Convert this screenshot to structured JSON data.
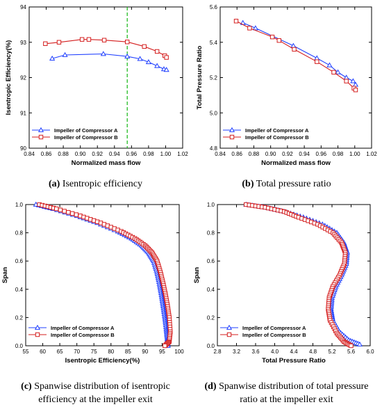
{
  "captions": [
    {
      "letter": "(a)",
      "text": "Isentropic efficiency"
    },
    {
      "letter": "(b)",
      "text": "Total pressure ratio"
    },
    {
      "letter": "(c)",
      "text": "Spanwise distribution of isentropic",
      "text2": "efficiency at the impeller exit"
    },
    {
      "letter": "(d)",
      "text": "Spanwise distribution of total pressure",
      "text2": "ratio at the impeller exit"
    }
  ],
  "colors": {
    "A": "#1f3fff",
    "B": "#d41c1c",
    "refline": "#11b611"
  },
  "chart_data": [
    {
      "type": "line",
      "xlabel": "Normalized mass flow",
      "ylabel": "Isentropic Efficiency(%)",
      "xlim": [
        0.84,
        1.02
      ],
      "ylim": [
        90,
        94
      ],
      "xticks": [
        "0.84",
        "0.86",
        "0.88",
        "0.90",
        "0.92",
        "0.94",
        "0.96",
        "0.98",
        "1.00",
        "1.02"
      ],
      "yticks": [
        "90",
        "91",
        "92",
        "93",
        "94"
      ],
      "legend_position": "bottom-left",
      "reference_line": {
        "x": 0.955,
        "style": "dashed"
      },
      "series": [
        {
          "name": "Impeller of Compressor A",
          "marker": "triangle",
          "x": [
            0.867,
            0.882,
            0.927,
            0.955,
            0.97,
            0.98,
            0.99,
            0.998,
            1.001
          ],
          "y": [
            92.54,
            92.64,
            92.67,
            92.6,
            92.53,
            92.44,
            92.33,
            92.24,
            92.22
          ]
        },
        {
          "name": "Impeller of Compressor B",
          "marker": "square",
          "x": [
            0.859,
            0.875,
            0.902,
            0.91,
            0.928,
            0.955,
            0.975,
            0.99,
            0.999,
            1.001
          ],
          "y": [
            92.96,
            93.0,
            93.08,
            93.08,
            93.06,
            93.01,
            92.88,
            92.74,
            92.62,
            92.57
          ]
        }
      ]
    },
    {
      "type": "line",
      "xlabel": "Normalized mass flow",
      "ylabel": "Total Pressure Ratio",
      "xlim": [
        0.84,
        1.02
      ],
      "ylim": [
        4.8,
        5.6
      ],
      "xticks": [
        "0.84",
        "0.86",
        "0.88",
        "0.90",
        "0.92",
        "0.94",
        "0.96",
        "0.98",
        "1.00",
        "1.02"
      ],
      "yticks": [
        "4.8",
        "5.0",
        "5.2",
        "5.4",
        "5.6"
      ],
      "legend_position": "bottom-left",
      "series": [
        {
          "name": "Impeller of Compressor A",
          "marker": "triangle",
          "x": [
            0.867,
            0.882,
            0.927,
            0.955,
            0.97,
            0.98,
            0.99,
            0.998,
            1.001
          ],
          "y": [
            5.51,
            5.48,
            5.38,
            5.31,
            5.27,
            5.23,
            5.2,
            5.18,
            5.16
          ]
        },
        {
          "name": "Impeller of Compressor B",
          "marker": "square",
          "x": [
            0.859,
            0.875,
            0.902,
            0.91,
            0.928,
            0.955,
            0.975,
            0.99,
            0.999,
            1.001
          ],
          "y": [
            5.52,
            5.48,
            5.43,
            5.41,
            5.36,
            5.29,
            5.23,
            5.18,
            5.14,
            5.13
          ]
        }
      ]
    },
    {
      "type": "line",
      "xlabel": "Isentropic Efficiency(%)",
      "ylabel": "Span",
      "xlim": [
        55,
        100
      ],
      "ylim": [
        0,
        1
      ],
      "xticks": [
        "55",
        "60",
        "65",
        "70",
        "75",
        "80",
        "85",
        "90",
        "95",
        "100"
      ],
      "yticks": [
        "0.0",
        "0.2",
        "0.4",
        "0.6",
        "0.8",
        "1.0"
      ],
      "legend_position": "bottom-left",
      "series": [
        {
          "name": "Impeller of Compressor A",
          "marker": "triangle",
          "x": [
            58,
            63,
            70,
            76,
            82,
            86,
            89,
            91,
            92.5,
            93.5,
            94.2,
            94.8,
            95.3,
            95.8,
            96.2,
            96.5,
            96.7
          ],
          "y": [
            1.0,
            0.97,
            0.92,
            0.87,
            0.81,
            0.76,
            0.71,
            0.66,
            0.6,
            0.52,
            0.44,
            0.36,
            0.28,
            0.2,
            0.12,
            0.05,
            0.0
          ]
        },
        {
          "name": "Impeller of Compressor B",
          "marker": "square",
          "x": [
            59,
            64,
            71,
            77,
            83,
            87,
            90,
            92,
            93.5,
            94.5,
            95.3,
            96,
            96.6,
            97.1,
            97.4,
            97.1,
            95.8
          ],
          "y": [
            1.0,
            0.97,
            0.92,
            0.87,
            0.81,
            0.76,
            0.71,
            0.66,
            0.6,
            0.52,
            0.44,
            0.36,
            0.28,
            0.2,
            0.1,
            0.03,
            0.0
          ]
        }
      ]
    },
    {
      "type": "line",
      "xlabel": "Total Pressure Ratio",
      "ylabel": "Span",
      "xlim": [
        2.8,
        6.0
      ],
      "ylim": [
        0,
        1
      ],
      "xticks": [
        "2.8",
        "3.2",
        "3.6",
        "4.0",
        "4.4",
        "4.8",
        "5.2",
        "5.6",
        "6.0"
      ],
      "yticks": [
        "0.0",
        "0.2",
        "0.4",
        "0.6",
        "0.8",
        "1.0"
      ],
      "legend_position": "bottom-left",
      "series": [
        {
          "name": "Impeller of Compressor A",
          "marker": "triangle",
          "x": [
            3.4,
            3.8,
            4.2,
            4.6,
            5.0,
            5.3,
            5.45,
            5.52,
            5.5,
            5.4,
            5.28,
            5.2,
            5.18,
            5.22,
            5.35,
            5.55,
            5.78
          ],
          "y": [
            1.0,
            0.98,
            0.95,
            0.91,
            0.86,
            0.8,
            0.73,
            0.66,
            0.58,
            0.5,
            0.42,
            0.34,
            0.26,
            0.18,
            0.1,
            0.04,
            0.01
          ]
        },
        {
          "name": "Impeller of Compressor B",
          "marker": "square",
          "x": [
            3.4,
            3.8,
            4.2,
            4.5,
            4.9,
            5.22,
            5.4,
            5.48,
            5.46,
            5.36,
            5.22,
            5.14,
            5.12,
            5.16,
            5.3,
            5.45,
            5.6
          ],
          "y": [
            1.0,
            0.98,
            0.95,
            0.91,
            0.86,
            0.8,
            0.73,
            0.66,
            0.58,
            0.5,
            0.42,
            0.34,
            0.26,
            0.18,
            0.09,
            0.03,
            0.0
          ]
        }
      ]
    }
  ]
}
